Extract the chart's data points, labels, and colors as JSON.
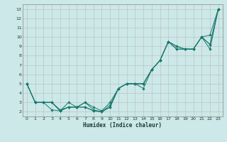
{
  "title": "",
  "xlabel": "Humidex (Indice chaleur)",
  "bg_color": "#cce8e8",
  "grid_color": "#aaaaaa",
  "line_color": "#1a7a6e",
  "xlim": [
    -0.5,
    23.5
  ],
  "ylim": [
    1.5,
    13.5
  ],
  "xticks": [
    0,
    1,
    2,
    3,
    4,
    5,
    6,
    7,
    8,
    9,
    10,
    11,
    12,
    13,
    14,
    15,
    16,
    17,
    18,
    19,
    20,
    21,
    22,
    23
  ],
  "yticks": [
    2,
    3,
    4,
    5,
    6,
    7,
    8,
    9,
    10,
    11,
    12,
    13
  ],
  "series": [
    [
      5.0,
      3.0,
      3.0,
      2.2,
      2.1,
      3.0,
      2.5,
      3.0,
      2.5,
      2.1,
      3.0,
      4.5,
      5.0,
      5.0,
      4.5,
      6.5,
      7.5,
      9.5,
      8.7,
      8.7,
      8.7,
      10.0,
      8.7,
      13.0
    ],
    [
      5.0,
      3.0,
      3.0,
      3.0,
      2.1,
      2.5,
      2.5,
      3.0,
      2.2,
      2.0,
      2.7,
      4.5,
      5.0,
      5.0,
      5.0,
      6.5,
      7.5,
      9.5,
      8.7,
      8.7,
      8.7,
      10.0,
      9.2,
      13.0
    ],
    [
      5.0,
      3.0,
      3.0,
      3.0,
      2.1,
      2.5,
      2.5,
      2.5,
      2.1,
      2.0,
      2.5,
      4.5,
      5.0,
      5.0,
      5.0,
      6.5,
      7.5,
      9.5,
      9.0,
      8.7,
      8.7,
      10.0,
      9.2,
      13.0
    ],
    [
      5.0,
      3.0,
      3.0,
      3.0,
      2.2,
      2.5,
      2.5,
      2.5,
      2.1,
      2.0,
      2.5,
      4.5,
      5.0,
      5.0,
      5.0,
      6.5,
      7.5,
      9.5,
      9.0,
      8.7,
      8.7,
      10.0,
      10.2,
      13.0
    ]
  ]
}
